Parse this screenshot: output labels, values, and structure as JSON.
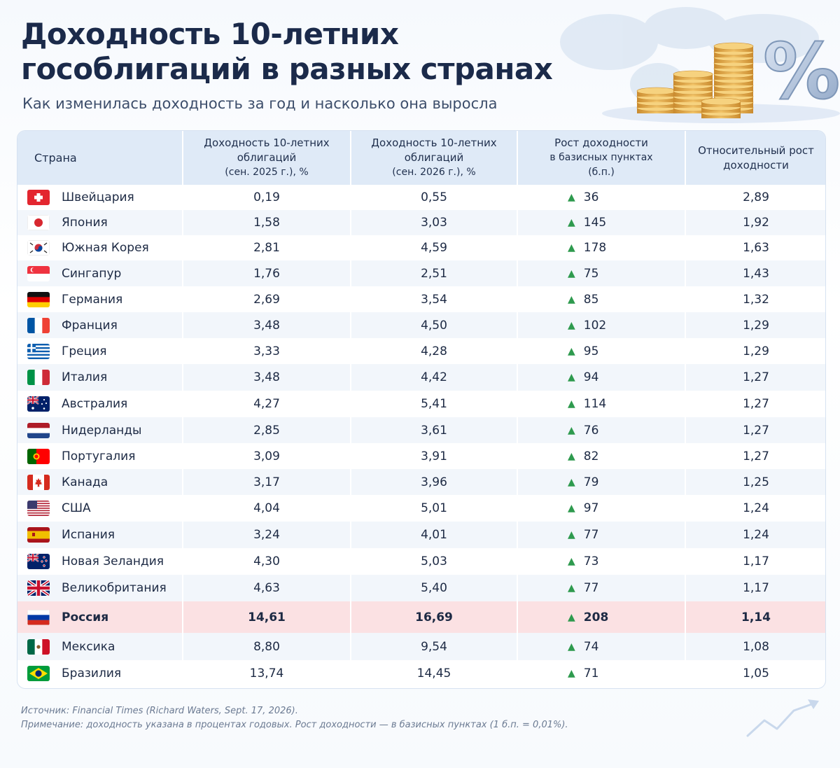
{
  "title_line1": "Доходность 10-летних",
  "title_line2": "гособлигаций в разных странах",
  "subtitle": "Как изменилась доходность за год и насколько она выросла",
  "header": {
    "country": "Страна",
    "c1_l1": "Доходность 10-летних",
    "c1_l2": "облигаций",
    "c1_l3": "(сен. 2025 г.), %",
    "c2_l1": "Доходность 10-летних",
    "c2_l2": "облигаций",
    "c2_l3": "(сен. 2026 г.), %",
    "c3_l1": "Рост доходности",
    "c3_l2": "в базисных пунктах",
    "c3_l3": "(б.п.)",
    "c4_l1": "Относительный рост",
    "c4_l2": "доходности"
  },
  "colors": {
    "header_bg": "#dfeaf7",
    "highlight_row": "#fbe1e3",
    "up_arrow": "#2e9a4e"
  },
  "up_glyph": "▲",
  "chart_data": {
    "type": "table",
    "columns": [
      "Страна",
      "Доходность 10-летних облигаций (сен. 2025 г.), %",
      "Доходность 10-летних облигаций (сен. 2026 г.), %",
      "Рост доходности в базисных пунктах (б.п.)",
      "Относительный рост доходности"
    ],
    "rows": [
      {
        "country": "Швейцария",
        "flag": "ch",
        "y2025": "0,19",
        "y2026": "0,55",
        "bp": "36",
        "rel": "2,89"
      },
      {
        "country": "Япония",
        "flag": "jp",
        "y2025": "1,58",
        "y2026": "3,03",
        "bp": "145",
        "rel": "1,92"
      },
      {
        "country": "Южная Корея",
        "flag": "kr",
        "y2025": "2,81",
        "y2026": "4,59",
        "bp": "178",
        "rel": "1,63"
      },
      {
        "country": "Сингапур",
        "flag": "sg",
        "y2025": "1,76",
        "y2026": "2,51",
        "bp": "75",
        "rel": "1,43"
      },
      {
        "country": "Германия",
        "flag": "de",
        "y2025": "2,69",
        "y2026": "3,54",
        "bp": "85",
        "rel": "1,32"
      },
      {
        "country": "Франция",
        "flag": "fr",
        "y2025": "3,48",
        "y2026": "4,50",
        "bp": "102",
        "rel": "1,29"
      },
      {
        "country": "Греция",
        "flag": "gr",
        "y2025": "3,33",
        "y2026": "4,28",
        "bp": "95",
        "rel": "1,29"
      },
      {
        "country": "Италия",
        "flag": "it",
        "y2025": "3,48",
        "y2026": "4,42",
        "bp": "94",
        "rel": "1,27"
      },
      {
        "country": "Австралия",
        "flag": "au",
        "y2025": "4,27",
        "y2026": "5,41",
        "bp": "114",
        "rel": "1,27"
      },
      {
        "country": "Нидерланды",
        "flag": "nl",
        "y2025": "2,85",
        "y2026": "3,61",
        "bp": "76",
        "rel": "1,27"
      },
      {
        "country": "Португалия",
        "flag": "pt",
        "y2025": "3,09",
        "y2026": "3,91",
        "bp": "82",
        "rel": "1,27"
      },
      {
        "country": "Канада",
        "flag": "ca",
        "y2025": "3,17",
        "y2026": "3,96",
        "bp": "79",
        "rel": "1,25"
      },
      {
        "country": "США",
        "flag": "us",
        "y2025": "4,04",
        "y2026": "5,01",
        "bp": "97",
        "rel": "1,24"
      },
      {
        "country": "Испания",
        "flag": "es",
        "y2025": "3,24",
        "y2026": "4,01",
        "bp": "77",
        "rel": "1,24"
      },
      {
        "country": "Новая Зеландия",
        "flag": "nz",
        "y2025": "4,30",
        "y2026": "5,03",
        "bp": "73",
        "rel": "1,17"
      },
      {
        "country": "Великобритания",
        "flag": "gb",
        "y2025": "4,63",
        "y2026": "5,40",
        "bp": "77",
        "rel": "1,17"
      },
      {
        "country": "Россия",
        "flag": "ru",
        "y2025": "14,61",
        "y2026": "16,69",
        "bp": "208",
        "rel": "1,14",
        "highlight": true
      },
      {
        "country": "Мексика",
        "flag": "mx",
        "y2025": "8,80",
        "y2026": "9,54",
        "bp": "74",
        "rel": "1,08"
      },
      {
        "country": "Бразилия",
        "flag": "br",
        "y2025": "13,74",
        "y2026": "14,45",
        "bp": "71",
        "rel": "1,05"
      }
    ]
  },
  "footnote_source": "Источник: Financial Times (Richard Waters, Sept. 17, 2026).",
  "footnote_note": "Примечание: доходность указана в процентах годовых. Рост доходности — в базисных пунктах (1 б.п. = 0,01%)."
}
